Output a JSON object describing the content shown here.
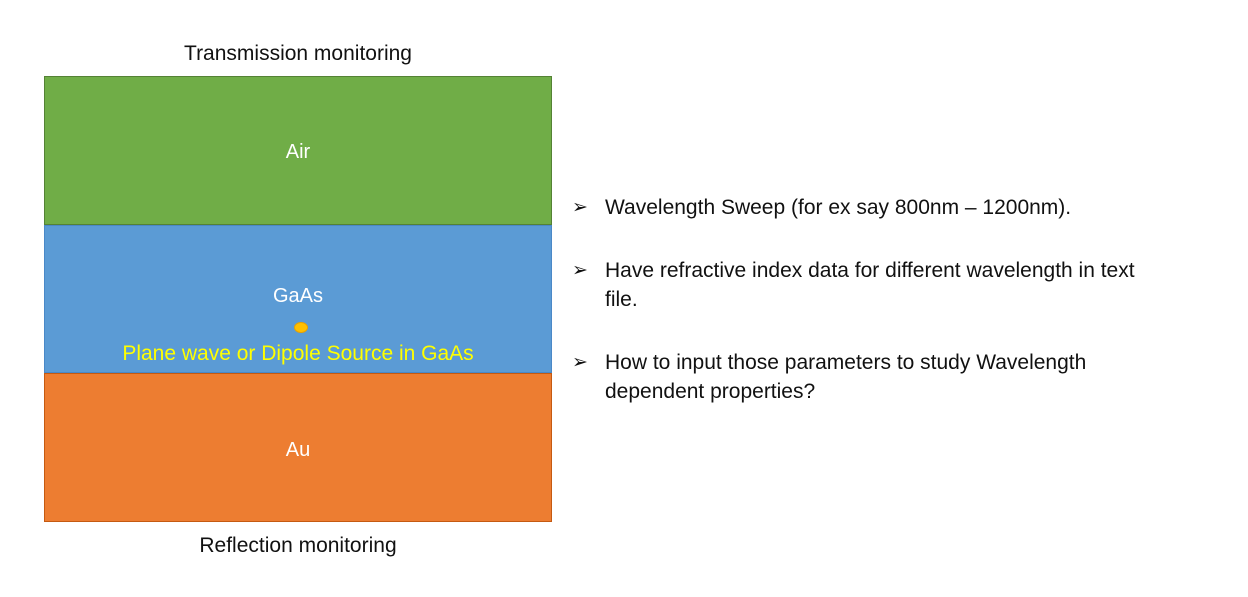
{
  "diagram": {
    "top_label": "Transmission monitoring",
    "bottom_label": "Reflection monitoring",
    "layers": [
      {
        "name": "Air",
        "fill": "#70AD47",
        "border": "#548235"
      },
      {
        "name": "GaAs",
        "fill": "#5B9BD5",
        "border": "#4A88C7"
      },
      {
        "name": "Au",
        "fill": "#ED7D31",
        "border": "#C55A11"
      }
    ],
    "source": {
      "caption": "Plane wave or Dipole Source in GaAs",
      "caption_color": "#FFFF00",
      "dot_color": "#FFC000"
    }
  },
  "notes": {
    "bullet_char": "➢",
    "items": [
      {
        "text": "Wavelength Sweep (for ex say 800nm – 1200nm)."
      },
      {
        "text": "Have refractive index data for different wavelength in text\nfile."
      },
      {
        "text": "How to input those parameters to study Wavelength\ndependent properties?"
      }
    ]
  }
}
